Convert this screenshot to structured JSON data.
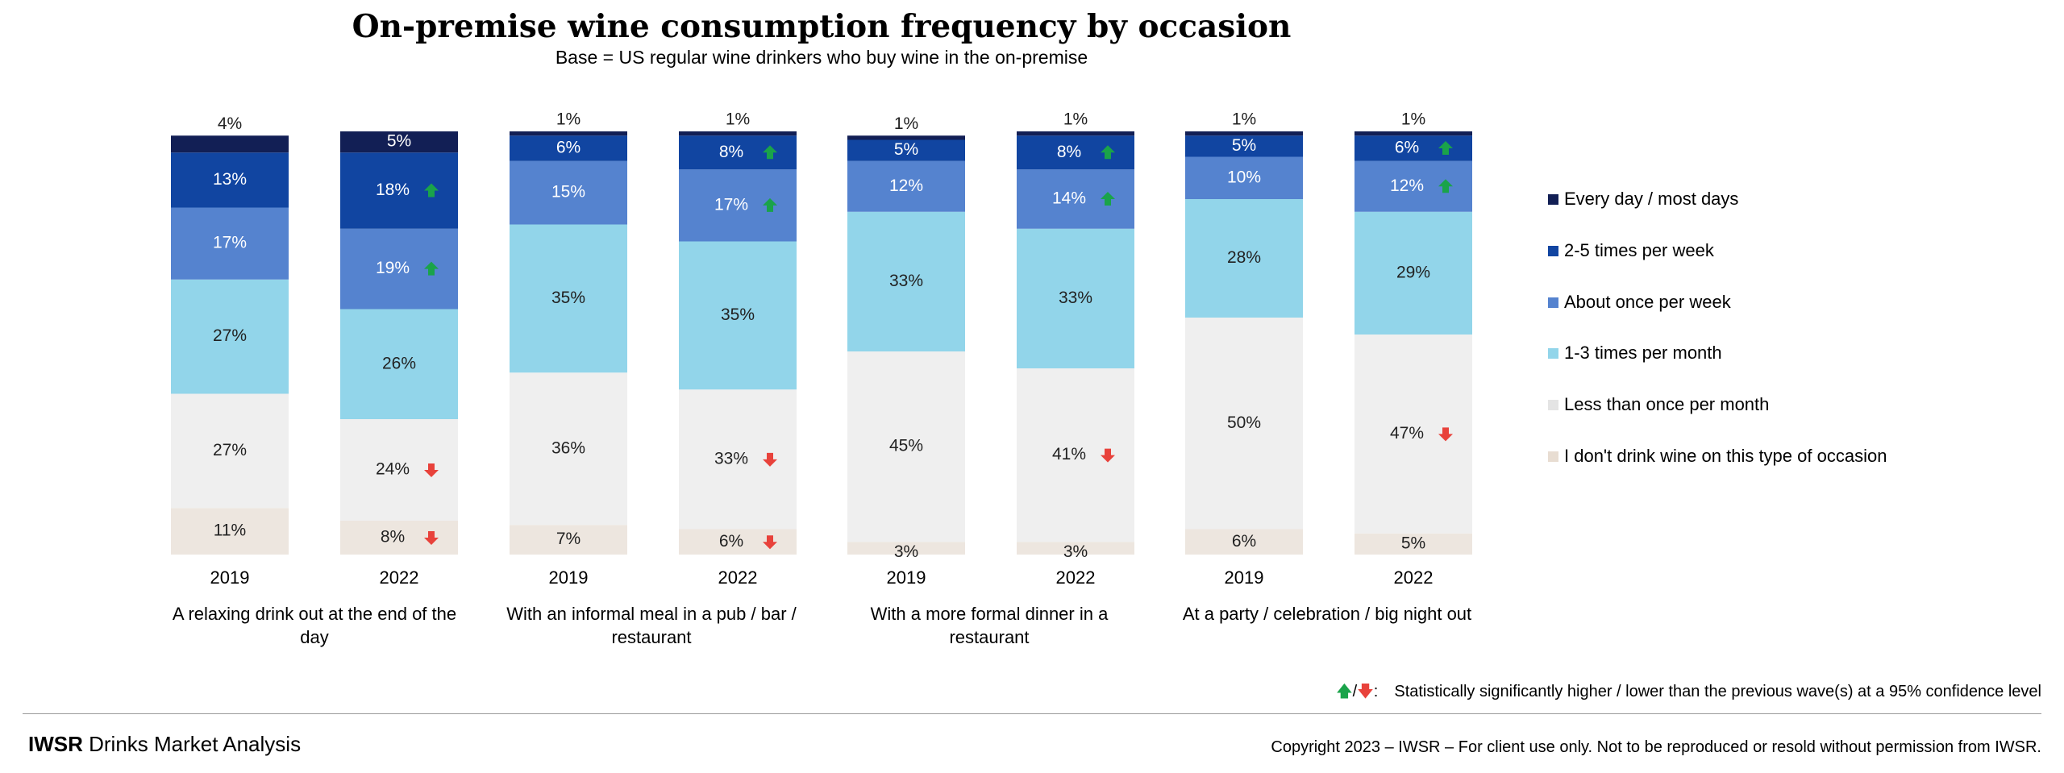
{
  "chart_data": {
    "type": "bar",
    "stacked": true,
    "title": "On-premise wine consumption frequency by occasion",
    "subtitle": "Base = US regular wine drinkers who buy wine in the on-premise",
    "groups": [
      {
        "label": "A relaxing drink out at the end of the day",
        "bars": [
          "2019",
          "2022"
        ]
      },
      {
        "label": "With an informal meal in a pub / bar / restaurant",
        "bars": [
          "2019",
          "2022"
        ]
      },
      {
        "label": "With a more formal dinner in a restaurant",
        "bars": [
          "2019",
          "2022"
        ]
      },
      {
        "label": "At a party / celebration / big night out",
        "bars": [
          "2019",
          "2022"
        ]
      }
    ],
    "categories": [
      "2019",
      "2022",
      "2019",
      "2022",
      "2019",
      "2022",
      "2019",
      "2022"
    ],
    "series": [
      {
        "name": "I don't drink wine on this type of occasion",
        "color": "#ede6df",
        "values": [
          11,
          8,
          7,
          6,
          3,
          3,
          6,
          5
        ]
      },
      {
        "name": "Less than once per month",
        "color": "#efefef",
        "values": [
          27,
          24,
          36,
          33,
          45,
          41,
          50,
          47
        ]
      },
      {
        "name": "1-3 times per month",
        "color": "#92d5ea",
        "values": [
          27,
          26,
          35,
          35,
          33,
          33,
          28,
          29
        ]
      },
      {
        "name": "About once per week",
        "color": "#5583cf",
        "values": [
          17,
          19,
          15,
          17,
          12,
          14,
          10,
          12
        ]
      },
      {
        "name": "2-5 times per week",
        "color": "#1145a1",
        "values": [
          13,
          18,
          6,
          8,
          5,
          8,
          5,
          6
        ]
      },
      {
        "name": "Every day / most days",
        "color": "#121f55",
        "values": [
          4,
          5,
          1,
          1,
          1,
          1,
          1,
          1
        ]
      }
    ],
    "labels": [
      [
        "11%",
        "27%",
        "27%",
        "17%",
        "13%",
        "4%"
      ],
      [
        "8%",
        "24%",
        "26%",
        "19%",
        "18%",
        "5%"
      ],
      [
        "7%",
        "36%",
        "35%",
        "15%",
        "6%",
        "1%"
      ],
      [
        "6%",
        "33%",
        "35%",
        "17%",
        "8%",
        "1%"
      ],
      [
        "3%",
        "45%",
        "33%",
        "12%",
        "5%",
        "1%"
      ],
      [
        "3%",
        "41%",
        "33%",
        "14%",
        "8%",
        "1%"
      ],
      [
        "6%",
        "50%",
        "28%",
        "10%",
        "5%",
        "1%"
      ],
      [
        "5%",
        "47%",
        "29%",
        "12%",
        "6%",
        "1%"
      ]
    ],
    "significance": [
      [
        null,
        null,
        null,
        null,
        null,
        null
      ],
      [
        "down",
        "down",
        null,
        "up",
        "up",
        null
      ],
      [
        null,
        null,
        null,
        null,
        null,
        null
      ],
      [
        "down",
        "down",
        null,
        "up",
        "up",
        null
      ],
      [
        null,
        null,
        null,
        null,
        null,
        null
      ],
      [
        null,
        "down",
        null,
        "up",
        "up",
        null
      ],
      [
        null,
        null,
        null,
        null,
        null,
        null
      ],
      [
        null,
        "down",
        null,
        "up",
        "up",
        null
      ]
    ],
    "legend_position": "right",
    "grid": false,
    "colors": {
      "up_arrow": "#1aa34a",
      "down_arrow": "#e8423b"
    }
  },
  "legend": {
    "items": [
      {
        "label": "Every day / most days",
        "color": "#121f55"
      },
      {
        "label": "2-5 times per week",
        "color": "#1145a1"
      },
      {
        "label": "About once per week",
        "color": "#5583cf"
      },
      {
        "label": "1-3 times per month",
        "color": "#92d5ea"
      },
      {
        "label": "Less than once per month",
        "color": "#efefef"
      },
      {
        "label": "I don't drink wine on this type of occasion",
        "color": "#ede6df"
      }
    ]
  },
  "footer": {
    "sig_arrow_separator": "/",
    "sig_arrow_suffix": ":",
    "significance_note": "Statistically significantly higher / lower than the previous wave(s) at a 95% confidence level",
    "brand_bold": "IWSR",
    "brand_rest": " Drinks Market Analysis",
    "copyright": "Copyright 2023 – IWSR – For client use only. Not to be reproduced or resold without permission from IWSR."
  }
}
